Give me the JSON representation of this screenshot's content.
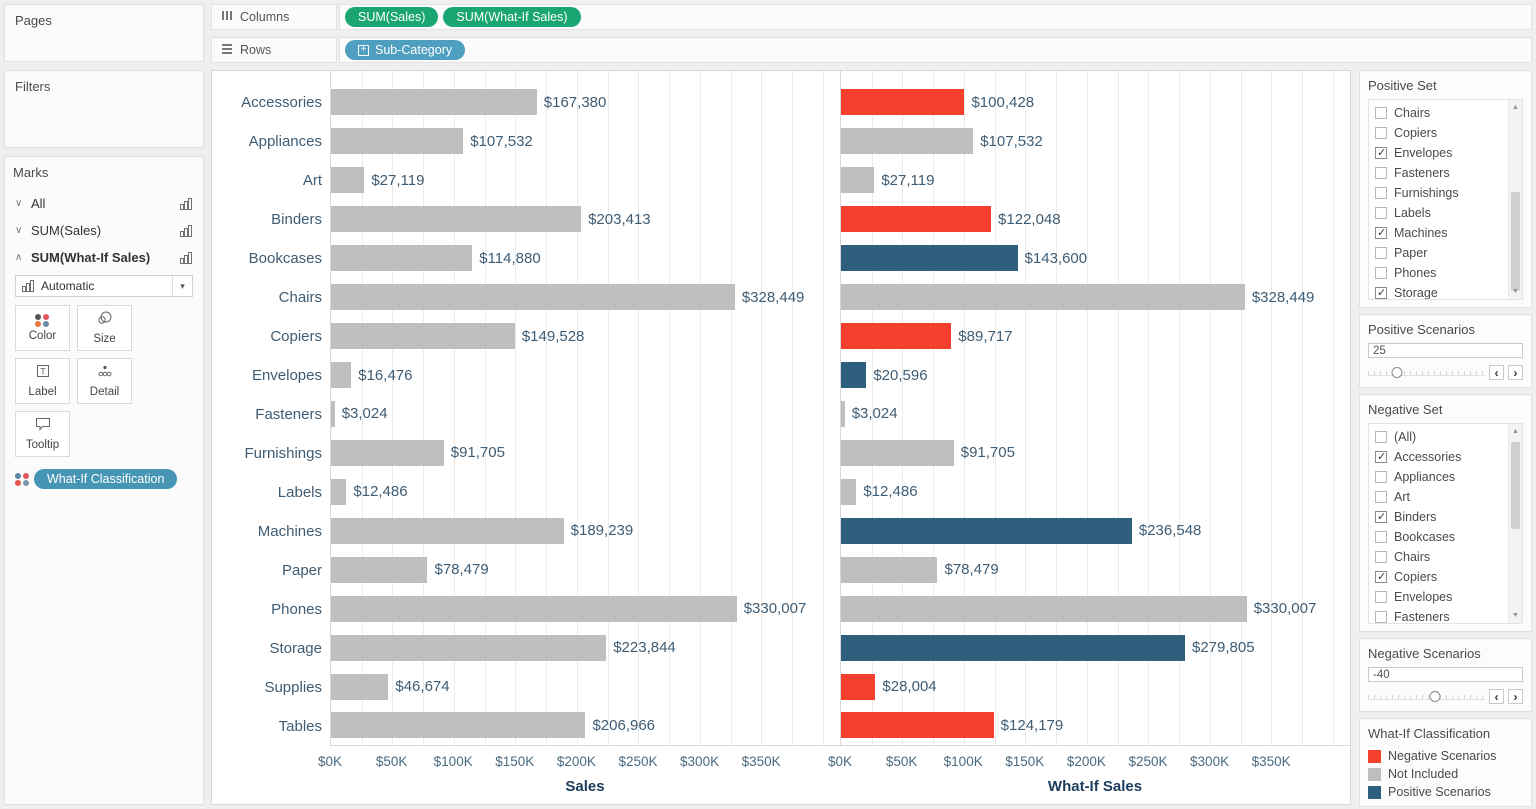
{
  "shelves": {
    "columns": {
      "label": "Columns",
      "pills": [
        "SUM(Sales)",
        "SUM(What-If Sales)"
      ]
    },
    "rows": {
      "label": "Rows",
      "pills": [
        "Sub-Category"
      ]
    }
  },
  "left": {
    "pages_title": "Pages",
    "filters_title": "Filters",
    "marks_title": "Marks",
    "mark_cards": [
      {
        "label": "All",
        "state": "collapsed"
      },
      {
        "label": "SUM(Sales)",
        "state": "collapsed"
      },
      {
        "label": "SUM(What-If Sales)",
        "state": "expanded"
      }
    ],
    "mark_type": "Automatic",
    "mark_buttons": [
      "Color",
      "Size",
      "Label",
      "Detail",
      "Tooltip"
    ],
    "legend_pill": "What-If Classification"
  },
  "chart_data": {
    "type": "bar",
    "orientation": "horizontal",
    "categories": [
      "Accessories",
      "Appliances",
      "Art",
      "Binders",
      "Bookcases",
      "Chairs",
      "Copiers",
      "Envelopes",
      "Fasteners",
      "Furnishings",
      "Labels",
      "Machines",
      "Paper",
      "Phones",
      "Storage",
      "Supplies",
      "Tables"
    ],
    "series": [
      {
        "name": "Sales",
        "values": [
          167380,
          107532,
          27119,
          203413,
          114880,
          328449,
          149528,
          16476,
          3024,
          91705,
          12486,
          189239,
          78479,
          330007,
          223844,
          46674,
          206966
        ]
      },
      {
        "name": "What-If Sales",
        "values": [
          100428,
          107532,
          27119,
          122048,
          143600,
          328449,
          89717,
          20596,
          3024,
          91705,
          12486,
          236548,
          78479,
          330007,
          279805,
          28004,
          124179
        ]
      }
    ],
    "whatif_classification": [
      "negative",
      "not_included",
      "not_included",
      "negative",
      "positive",
      "not_included",
      "negative",
      "positive",
      "not_included",
      "not_included",
      "not_included",
      "positive",
      "not_included",
      "not_included",
      "positive",
      "negative",
      "negative"
    ],
    "class_colors": {
      "negative": "#f5402d",
      "not_included": "#bfbfbf",
      "positive": "#2e5f7d"
    },
    "axis": {
      "tick_values": [
        0,
        50000,
        100000,
        150000,
        200000,
        250000,
        300000,
        350000
      ],
      "tick_labels": [
        "$0K",
        "$50K",
        "$100K",
        "$150K",
        "$200K",
        "$250K",
        "$300K",
        "$350K"
      ],
      "max": 414000,
      "gridline_step": 25000,
      "grid": true
    },
    "axis_titles": [
      "Sales",
      "What-If Sales"
    ],
    "legend_position": "right"
  },
  "right": {
    "positive_set": {
      "title": "Positive Set",
      "items": [
        {
          "label": "Chairs",
          "checked": false
        },
        {
          "label": "Copiers",
          "checked": false
        },
        {
          "label": "Envelopes",
          "checked": true
        },
        {
          "label": "Fasteners",
          "checked": false
        },
        {
          "label": "Furnishings",
          "checked": false
        },
        {
          "label": "Labels",
          "checked": false
        },
        {
          "label": "Machines",
          "checked": true
        },
        {
          "label": "Paper",
          "checked": false
        },
        {
          "label": "Phones",
          "checked": false
        },
        {
          "label": "Storage",
          "checked": true
        }
      ]
    },
    "positive_scenarios": {
      "title": "Positive Scenarios",
      "value": "25"
    },
    "negative_set": {
      "title": "Negative Set",
      "items": [
        {
          "label": "(All)",
          "checked": false
        },
        {
          "label": "Accessories",
          "checked": true
        },
        {
          "label": "Appliances",
          "checked": false
        },
        {
          "label": "Art",
          "checked": false
        },
        {
          "label": "Binders",
          "checked": true
        },
        {
          "label": "Bookcases",
          "checked": false
        },
        {
          "label": "Chairs",
          "checked": false
        },
        {
          "label": "Copiers",
          "checked": true
        },
        {
          "label": "Envelopes",
          "checked": false
        },
        {
          "label": "Fasteners",
          "checked": false
        }
      ]
    },
    "negative_scenarios": {
      "title": "Negative Scenarios",
      "value": "-40"
    },
    "classification_legend": {
      "title": "What-If Classification",
      "entries": [
        {
          "label": "Negative Scenarios",
          "color": "#f5402d"
        },
        {
          "label": "Not Included",
          "color": "#bfbfbf"
        },
        {
          "label": "Positive Scenarios",
          "color": "#2e5f7d"
        }
      ]
    }
  },
  "colors": {
    "pill_green": "#1aa672",
    "pill_blue": "#4f9fc0",
    "legend_pill_teal": "#4795b5",
    "bar_gray": "#bfbfbf",
    "bar_red": "#f5402d",
    "bar_blue": "#2e5f7d"
  }
}
